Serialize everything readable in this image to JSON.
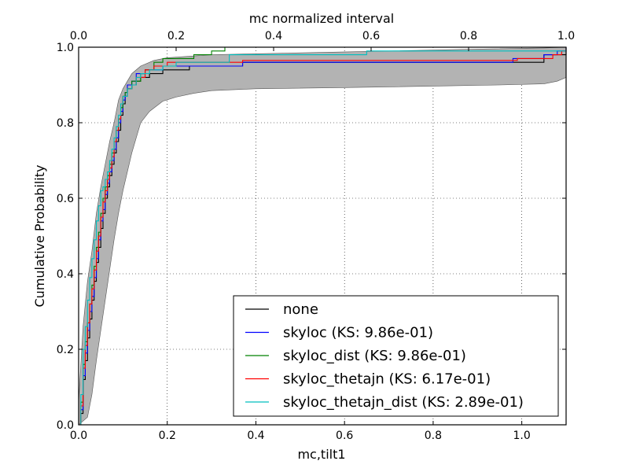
{
  "chart_data": {
    "type": "line",
    "title": "",
    "xlabel": "mc,tilt1",
    "ylabel": "Cumulative Probability",
    "top_xlabel": "mc normalized interval",
    "xlim": [
      0,
      1.1
    ],
    "ylim": [
      0,
      1.0
    ],
    "top_xlim": [
      0,
      1.0
    ],
    "x_ticks": [
      0,
      0.2,
      0.4,
      0.6,
      0.8,
      1.0
    ],
    "x_tick_labels": [
      "0.0",
      "0.2",
      "0.4",
      "0.6",
      "0.8",
      "1.0"
    ],
    "top_x_ticks": [
      0,
      0.2,
      0.4,
      0.6,
      0.8,
      1.0
    ],
    "top_x_tick_labels": [
      "0.0",
      "0.2",
      "0.4",
      "0.6",
      "0.8",
      "1.0"
    ],
    "y_ticks": [
      0,
      0.2,
      0.4,
      0.6,
      0.8,
      1.0
    ],
    "y_tick_labels": [
      "0.0",
      "0.2",
      "0.4",
      "0.6",
      "0.8",
      "1.0"
    ],
    "grid": true,
    "legend_position": "lower-right",
    "band": {
      "color": "#b3b3b3",
      "upper": [
        [
          0,
          0.06
        ],
        [
          0.005,
          0.16
        ],
        [
          0.01,
          0.26
        ],
        [
          0.02,
          0.38
        ],
        [
          0.03,
          0.46
        ],
        [
          0.04,
          0.56
        ],
        [
          0.05,
          0.63
        ],
        [
          0.06,
          0.69
        ],
        [
          0.07,
          0.75
        ],
        [
          0.08,
          0.8
        ],
        [
          0.09,
          0.86
        ],
        [
          0.1,
          0.89
        ],
        [
          0.11,
          0.91
        ],
        [
          0.12,
          0.93
        ],
        [
          0.14,
          0.95
        ],
        [
          0.17,
          0.965
        ],
        [
          0.2,
          0.972
        ],
        [
          0.3,
          0.98
        ],
        [
          0.5,
          0.985
        ],
        [
          0.7,
          0.99
        ],
        [
          0.9,
          0.995
        ],
        [
          1.05,
          0.998
        ],
        [
          1.1,
          1.0
        ]
      ],
      "lower": [
        [
          0,
          0.0
        ],
        [
          0.02,
          0.02
        ],
        [
          0.03,
          0.08
        ],
        [
          0.04,
          0.17
        ],
        [
          0.05,
          0.25
        ],
        [
          0.06,
          0.33
        ],
        [
          0.07,
          0.41
        ],
        [
          0.08,
          0.49
        ],
        [
          0.09,
          0.56
        ],
        [
          0.1,
          0.62
        ],
        [
          0.11,
          0.67
        ],
        [
          0.12,
          0.72
        ],
        [
          0.13,
          0.76
        ],
        [
          0.14,
          0.8
        ],
        [
          0.16,
          0.83
        ],
        [
          0.19,
          0.857
        ],
        [
          0.22,
          0.868
        ],
        [
          0.26,
          0.878
        ],
        [
          0.3,
          0.885
        ],
        [
          0.4,
          0.89
        ],
        [
          0.6,
          0.893
        ],
        [
          0.8,
          0.897
        ],
        [
          0.95,
          0.9
        ],
        [
          1.05,
          0.903
        ],
        [
          1.08,
          0.91
        ],
        [
          1.1,
          0.92
        ]
      ]
    },
    "series": [
      {
        "name": "none",
        "color": "#000000",
        "x": [
          0,
          0.005,
          0.01,
          0.015,
          0.02,
          0.025,
          0.03,
          0.035,
          0.04,
          0.045,
          0.05,
          0.055,
          0.06,
          0.065,
          0.07,
          0.075,
          0.08,
          0.085,
          0.09,
          0.095,
          0.1,
          0.105,
          0.11,
          0.12,
          0.13,
          0.14,
          0.16,
          0.19,
          0.25,
          0.37,
          1.05,
          1.1
        ],
        "y": [
          0,
          0.03,
          0.12,
          0.17,
          0.23,
          0.28,
          0.33,
          0.38,
          0.43,
          0.47,
          0.52,
          0.56,
          0.6,
          0.63,
          0.66,
          0.69,
          0.72,
          0.75,
          0.78,
          0.82,
          0.85,
          0.87,
          0.89,
          0.9,
          0.91,
          0.92,
          0.93,
          0.94,
          0.95,
          0.96,
          0.98,
          0.99
        ]
      },
      {
        "name": "skyloc (KS: 9.86e-01)",
        "color": "#0000ff",
        "x": [
          0,
          0.005,
          0.01,
          0.015,
          0.02,
          0.025,
          0.03,
          0.035,
          0.04,
          0.045,
          0.05,
          0.055,
          0.06,
          0.065,
          0.07,
          0.075,
          0.08,
          0.085,
          0.09,
          0.095,
          0.1,
          0.105,
          0.11,
          0.12,
          0.13,
          0.15,
          0.19,
          0.37,
          0.98,
          1.05,
          1.08,
          1.1
        ],
        "y": [
          0,
          0.04,
          0.13,
          0.19,
          0.25,
          0.3,
          0.34,
          0.39,
          0.44,
          0.49,
          0.54,
          0.57,
          0.61,
          0.64,
          0.67,
          0.7,
          0.73,
          0.76,
          0.8,
          0.83,
          0.86,
          0.88,
          0.9,
          0.91,
          0.93,
          0.94,
          0.95,
          0.96,
          0.97,
          0.98,
          0.99,
          1.0
        ]
      },
      {
        "name": "skyloc_dist (KS: 9.86e-01)",
        "color": "#008000",
        "x": [
          0,
          0.005,
          0.01,
          0.015,
          0.02,
          0.025,
          0.03,
          0.035,
          0.04,
          0.045,
          0.05,
          0.055,
          0.06,
          0.065,
          0.07,
          0.075,
          0.08,
          0.085,
          0.09,
          0.095,
          0.1,
          0.105,
          0.11,
          0.12,
          0.14,
          0.15,
          0.17,
          0.19,
          0.26,
          0.3,
          0.33,
          1.1
        ],
        "y": [
          0,
          0.06,
          0.16,
          0.22,
          0.27,
          0.32,
          0.37,
          0.42,
          0.47,
          0.51,
          0.56,
          0.6,
          0.63,
          0.66,
          0.69,
          0.72,
          0.75,
          0.78,
          0.81,
          0.84,
          0.87,
          0.88,
          0.89,
          0.91,
          0.93,
          0.94,
          0.96,
          0.97,
          0.98,
          0.99,
          1.0,
          1.0
        ]
      },
      {
        "name": "skyloc_thetajn (KS: 6.17e-01)",
        "color": "#ff0000",
        "x": [
          0,
          0.005,
          0.01,
          0.015,
          0.02,
          0.025,
          0.03,
          0.035,
          0.04,
          0.045,
          0.05,
          0.055,
          0.06,
          0.065,
          0.07,
          0.075,
          0.08,
          0.085,
          0.09,
          0.095,
          0.1,
          0.11,
          0.12,
          0.13,
          0.15,
          0.17,
          0.2,
          0.37,
          0.99,
          1.07,
          1.09,
          1.1
        ],
        "y": [
          0,
          0.05,
          0.15,
          0.21,
          0.27,
          0.32,
          0.36,
          0.41,
          0.46,
          0.5,
          0.55,
          0.59,
          0.62,
          0.65,
          0.68,
          0.71,
          0.75,
          0.78,
          0.81,
          0.85,
          0.87,
          0.89,
          0.9,
          0.92,
          0.94,
          0.95,
          0.96,
          0.965,
          0.97,
          0.98,
          0.99,
          1.0
        ]
      },
      {
        "name": "skyloc_thetajn_dist (KS: 2.89e-01)",
        "color": "#00bfbf",
        "x": [
          0,
          0.005,
          0.01,
          0.015,
          0.02,
          0.025,
          0.03,
          0.035,
          0.04,
          0.045,
          0.05,
          0.055,
          0.06,
          0.065,
          0.07,
          0.075,
          0.08,
          0.085,
          0.09,
          0.095,
          0.1,
          0.11,
          0.12,
          0.13,
          0.14,
          0.16,
          0.19,
          0.22,
          0.34,
          0.65,
          1.1
        ],
        "y": [
          0,
          0.08,
          0.2,
          0.26,
          0.33,
          0.39,
          0.44,
          0.49,
          0.54,
          0.58,
          0.62,
          0.63,
          0.65,
          0.67,
          0.7,
          0.73,
          0.76,
          0.79,
          0.82,
          0.85,
          0.87,
          0.89,
          0.9,
          0.92,
          0.93,
          0.94,
          0.95,
          0.96,
          0.98,
          0.99,
          1.0
        ]
      }
    ]
  }
}
